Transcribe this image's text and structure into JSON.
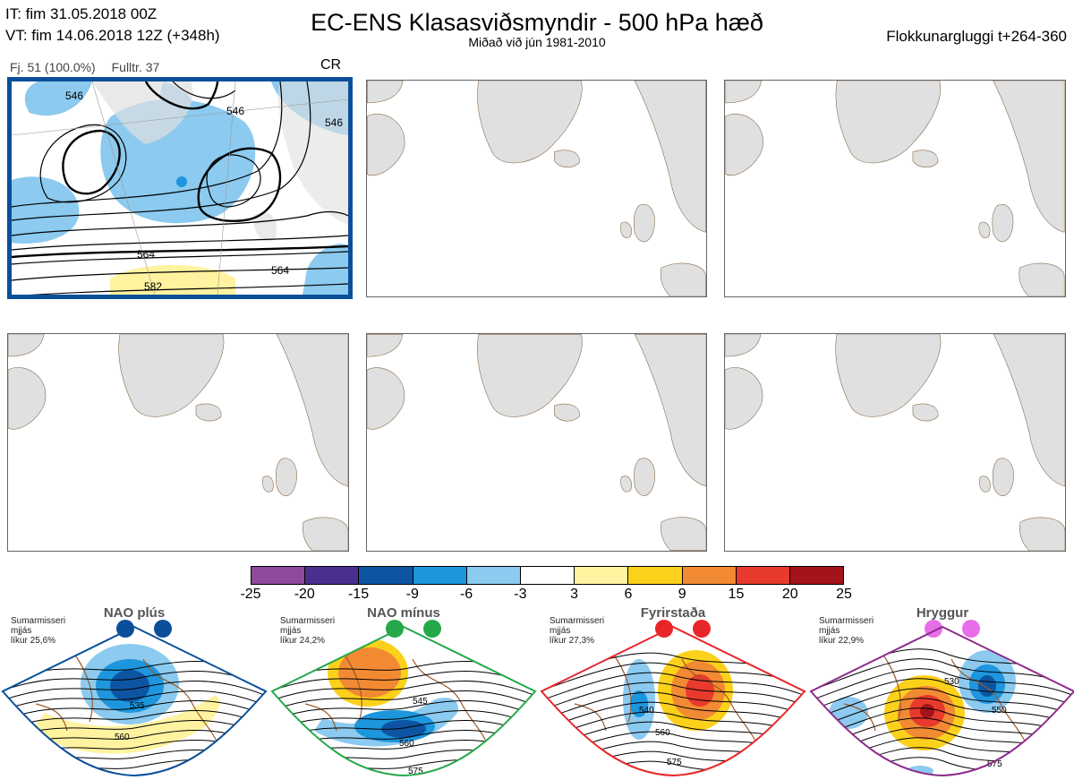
{
  "header": {
    "it_line": "IT: fim 31.05.2018 00Z",
    "vt_line": "VT: fim 14.06.2018 12Z  (+348h)",
    "title": "EC-ENS Klasasviðsmyndir - 500 hPa hæð",
    "subtitle": "Miðað við jún 1981-2010",
    "window": "Flokkunargluggi t+264-360"
  },
  "cluster": {
    "members": "Fj. 51 (100.0%)",
    "representative": "Fulltr. 37",
    "regime": "CR",
    "contour_labels": [
      "546",
      "546",
      "546",
      "564",
      "564",
      "582",
      "564"
    ]
  },
  "panels": [
    {
      "id": 1,
      "selected": true
    },
    {
      "id": 2,
      "selected": false
    },
    {
      "id": 3,
      "selected": false
    },
    {
      "id": 4,
      "selected": false
    },
    {
      "id": 5,
      "selected": false
    },
    {
      "id": 6,
      "selected": false
    }
  ],
  "colorbar": {
    "ticks": [
      "-25",
      "-20",
      "-15",
      "-9",
      "-6",
      "-3",
      "3",
      "6",
      "9",
      "15",
      "20",
      "25"
    ],
    "colors": [
      "#8e4a9c",
      "#4a2f8f",
      "#0d55a3",
      "#1d96dd",
      "#8ccaef",
      "#ffffff",
      "#fff3a0",
      "#fcd11b",
      "#f28a33",
      "#e83a2d",
      "#a31319"
    ]
  },
  "regimes": [
    {
      "name": "NAO plús",
      "season": "Sumarmisseri",
      "kind": "mjjás",
      "likelihood": "líkur 25,6%",
      "color": "#0b4f9a",
      "labels": [
        "535",
        "560"
      ]
    },
    {
      "name": "NAO mínus",
      "season": "Sumarmisseri",
      "kind": "mjjás",
      "likelihood": "líkur 24,2%",
      "color": "#25a84a",
      "labels": [
        "545",
        "560",
        "575"
      ]
    },
    {
      "name": "Fyrirstaða",
      "season": "Sumarmisseri",
      "kind": "mjjás",
      "likelihood": "líkur 27,3%",
      "color": "#e8262a",
      "labels": [
        "540",
        "560",
        "575"
      ]
    },
    {
      "name": "Hryggur",
      "season": "Sumarmisseri",
      "kind": "mjjás",
      "likelihood": "líkur 22,9%",
      "color": "#8c2c8c",
      "labels": [
        "530",
        "550",
        "575"
      ]
    }
  ]
}
